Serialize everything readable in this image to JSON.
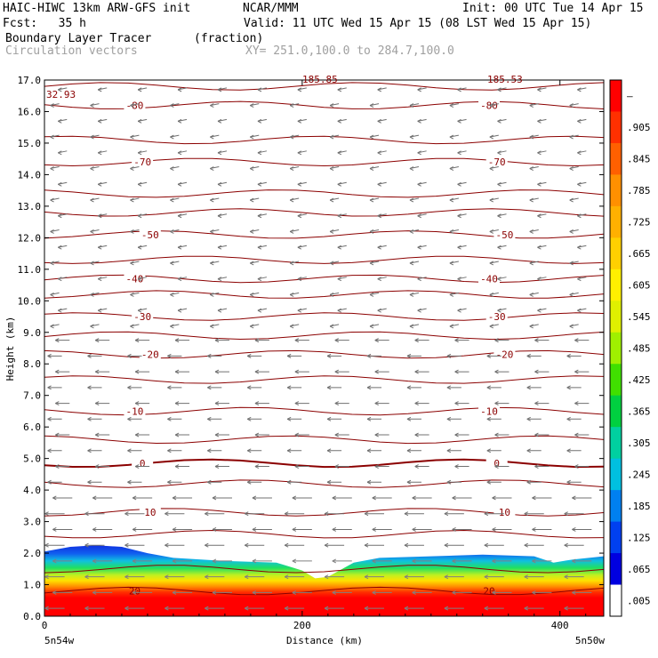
{
  "header": {
    "model": "HAIC-HIWC 13km ARW-GFS init",
    "org": "NCAR/MMM",
    "init": "Init: 00 UTC Tue 14 Apr 15",
    "fcst": "Fcst:   35 h",
    "valid": "Valid: 11 UTC Wed 15 Apr 15 (08 LST Wed 15 Apr 15)",
    "field": "Boundary Layer Tracer",
    "field_units": "(fraction)",
    "vectors": "Circulation vectors",
    "xy": "XY= 251.0,100.0 to 284.7,100.0"
  },
  "chart_data": {
    "type": "heatmap",
    "title": "Boundary Layer Tracer",
    "xlabel": "Distance (km)",
    "ylabel": "Height (km)",
    "xlim": [
      0,
      434
    ],
    "ylim": [
      0,
      17
    ],
    "x_ticks": [
      "0",
      "200",
      "400"
    ],
    "x_tick_values": [
      0,
      200,
      400
    ],
    "x_end_labels": [
      "5n54w",
      "5n50w"
    ],
    "y_ticks": [
      "0.0",
      "1.0",
      "2.0",
      "3.0",
      "4.0",
      "5.0",
      "6.0",
      "7.0",
      "8.0",
      "9.0",
      "10.0",
      "11.0",
      "12.0",
      "13.0",
      "14.0",
      "15.0",
      "16.0",
      "17.0"
    ],
    "y_tick_values": [
      0,
      1,
      2,
      3,
      4,
      5,
      6,
      7,
      8,
      9,
      10,
      11,
      12,
      13,
      14,
      15,
      16,
      17
    ],
    "colorbar": {
      "labels": [
        "–",
        ".905",
        ".845",
        ".785",
        ".725",
        ".665",
        ".605",
        ".545",
        ".485",
        ".425",
        ".365",
        ".305",
        ".245",
        ".185",
        ".125",
        ".065",
        ".005"
      ],
      "colors": [
        "#ff0000",
        "#ff3000",
        "#ff6000",
        "#ff9000",
        "#ffb000",
        "#ffd000",
        "#fff000",
        "#e0f000",
        "#a0f000",
        "#40e000",
        "#00d040",
        "#00d0a0",
        "#00c0e0",
        "#0080f0",
        "#0040f0",
        "#0000e0",
        "#ffffff"
      ]
    },
    "tracer_top_km": [
      [
        0,
        2.05
      ],
      [
        20,
        2.2
      ],
      [
        40,
        2.25
      ],
      [
        60,
        2.2
      ],
      [
        80,
        2.0
      ],
      [
        100,
        1.85
      ],
      [
        140,
        1.75
      ],
      [
        180,
        1.7
      ],
      [
        200,
        1.45
      ],
      [
        210,
        1.2
      ],
      [
        220,
        1.25
      ],
      [
        240,
        1.7
      ],
      [
        260,
        1.85
      ],
      [
        300,
        1.9
      ],
      [
        340,
        1.95
      ],
      [
        380,
        1.9
      ],
      [
        395,
        1.7
      ],
      [
        410,
        1.8
      ],
      [
        434,
        1.9
      ]
    ],
    "temperature_contours": {
      "units": "C",
      "levels": [
        {
          "value": "-80",
          "height": 16.2
        },
        {
          "value": "-70",
          "height": 14.4
        },
        {
          "value": "-50",
          "height": 12.1
        },
        {
          "value": "-40",
          "height": 10.7
        },
        {
          "value": "-30",
          "height": 9.5
        },
        {
          "value": "-20",
          "height": 8.3
        },
        {
          "value": "-10",
          "height": 6.5
        },
        {
          "value": "0",
          "height": 4.85
        },
        {
          "value": "10",
          "height": 3.3
        },
        {
          "value": "20",
          "height": 0.8
        }
      ],
      "unlabeled_heights": [
        16.8,
        15.1,
        13.4,
        12.8,
        11.3,
        10.2,
        8.9,
        7.5,
        5.6,
        4.2,
        2.6,
        1.5
      ]
    },
    "annotations": [
      "32.93",
      "185.85",
      "185.53"
    ]
  }
}
